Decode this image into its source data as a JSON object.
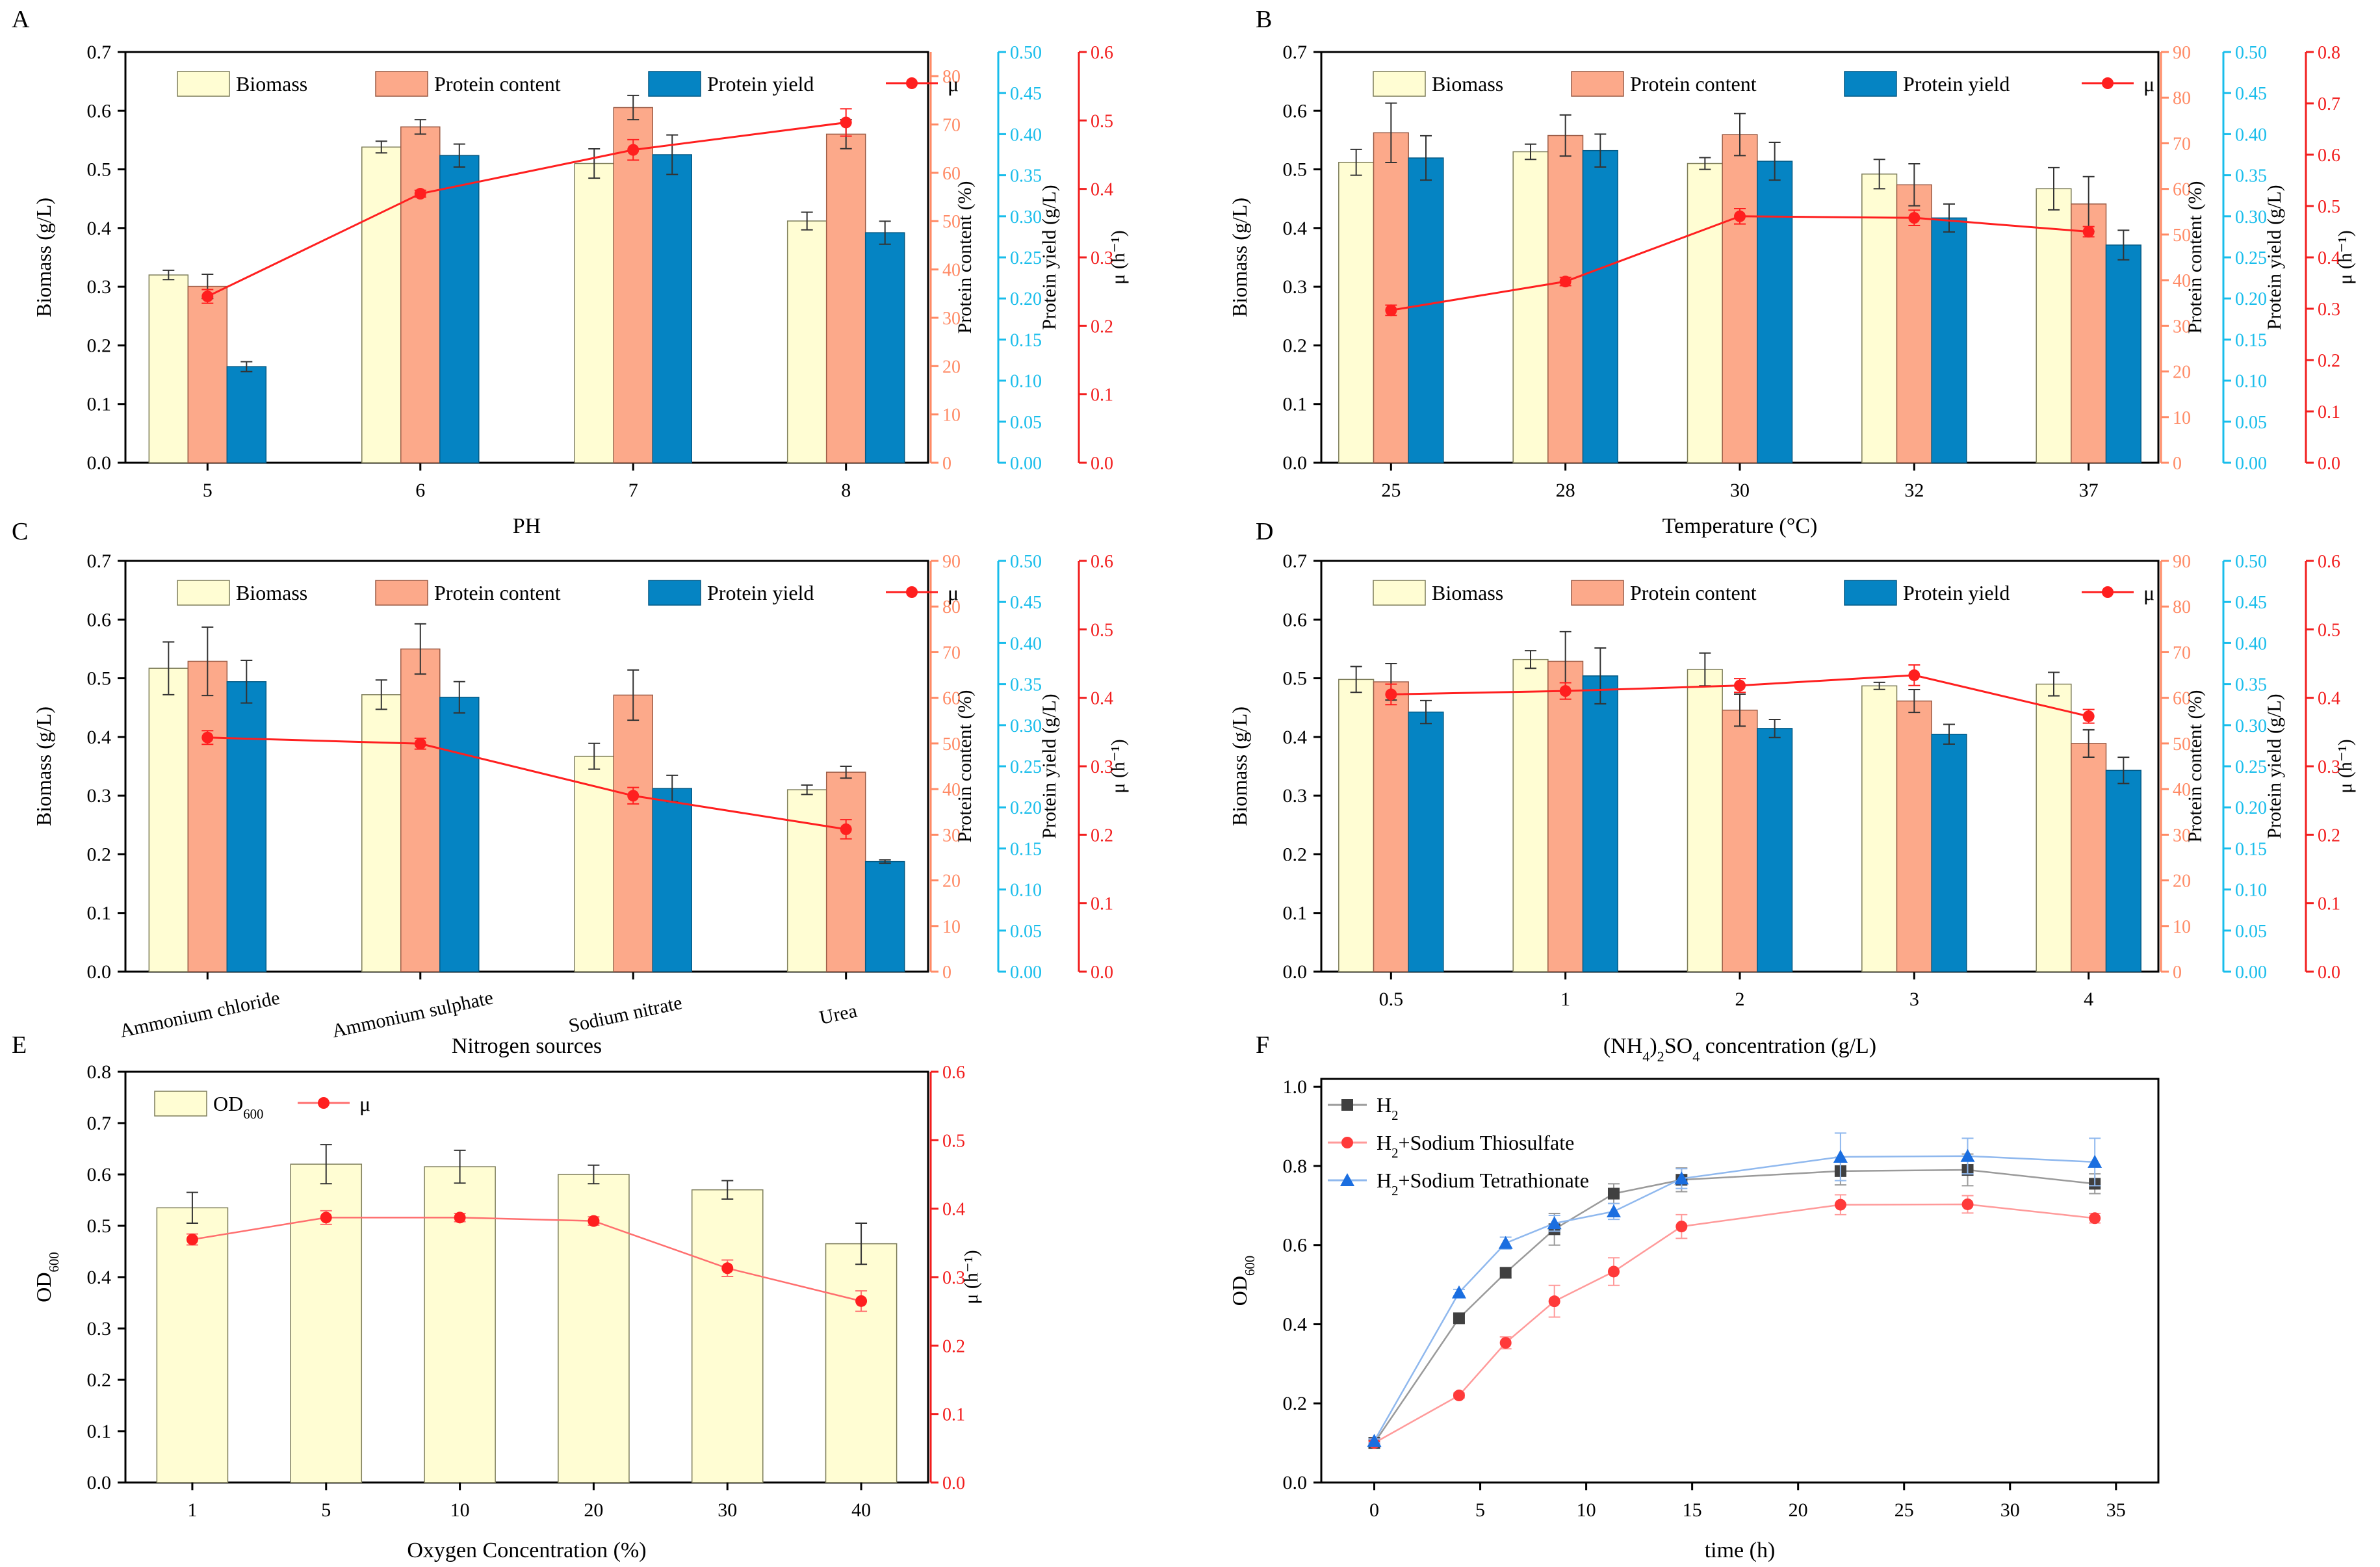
{
  "figure": {
    "colors": {
      "biomass": "#FFFDD3",
      "biomass_stroke": "#7d7d5a",
      "protein_content": "#FCA98A",
      "protein_content_stroke": "#9a5b45",
      "protein_yield": "#0584C3",
      "protein_yield_stroke": "#045a85",
      "mu": "#FF1F1F",
      "mu_light": "#FF6E6E",
      "content_axis": "#FF8A65",
      "yield_axis": "#18BDEB",
      "mu_axis": "#F21E1E",
      "od": "#FFFDD3",
      "h2": "#404040",
      "h2_line": "#9a9a9a",
      "thio": "#FF3A3A",
      "thio_line": "#FF9A9A",
      "tetra": "#1A6EE0",
      "tetra_line": "#8FB8EE"
    }
  },
  "chart_data": [
    {
      "id": "A",
      "panel_label": "A",
      "type": "bar",
      "title": "",
      "xlabel": "PH",
      "ylabel": "Biomass (g/L)",
      "y2label": "Protein content (%)",
      "y3label": "Protein yield (g/L)",
      "y4label": "μ (h⁻¹)",
      "categories": [
        "5",
        "6",
        "7",
        "8"
      ],
      "ylim": [
        0,
        0.7
      ],
      "y_ticks": [
        "0.0",
        "0.1",
        "0.2",
        "0.3",
        "0.4",
        "0.5",
        "0.6",
        "0.7"
      ],
      "y2lim": [
        0,
        85
      ],
      "y2_ticks": [
        "0",
        "10",
        "20",
        "30",
        "40",
        "50",
        "60",
        "70",
        "80"
      ],
      "y3lim": [
        0,
        0.5
      ],
      "y3_ticks": [
        "0.00",
        "0.05",
        "0.10",
        "0.15",
        "0.20",
        "0.25",
        "0.30",
        "0.35",
        "0.40",
        "0.45",
        "0.50"
      ],
      "y4lim": [
        0,
        0.6
      ],
      "y4_ticks": [
        "0.0",
        "0.1",
        "0.2",
        "0.3",
        "0.4",
        "0.5",
        "0.6"
      ],
      "legend": [
        "Biomass",
        "Protein content",
        "Protein yield",
        "μ"
      ],
      "legend_position": "top",
      "series": [
        {
          "name": "Biomass",
          "values": [
            0.32,
            0.538,
            0.51,
            0.412
          ],
          "errors": [
            0.008,
            0.01,
            0.025,
            0.015
          ]
        },
        {
          "name": "Protein content",
          "values": [
            36.5,
            69.5,
            73.5,
            68
          ],
          "errors": [
            2.5,
            1.5,
            2.5,
            3
          ]
        },
        {
          "name": "Protein yield",
          "values": [
            0.117,
            0.374,
            0.375,
            0.28
          ],
          "errors": [
            0.006,
            0.014,
            0.024,
            0.014
          ]
        },
        {
          "name": "μ",
          "values": [
            0.243,
            0.393,
            0.457,
            0.497
          ],
          "errors": [
            0.01,
            0.005,
            0.015,
            0.02
          ]
        }
      ]
    },
    {
      "id": "B",
      "panel_label": "B",
      "type": "bar",
      "title": "",
      "xlabel": "Temperature (°C)",
      "ylabel": "Biomass (g/L)",
      "y2label": "Protein content (%)",
      "y3label": "Protein yield (g/L)",
      "y4label": "μ (h⁻¹)",
      "categories": [
        "25",
        "28",
        "30",
        "32",
        "37"
      ],
      "ylim": [
        0,
        0.7
      ],
      "y_ticks": [
        "0.0",
        "0.1",
        "0.2",
        "0.3",
        "0.4",
        "0.5",
        "0.6",
        "0.7"
      ],
      "y2lim": [
        0,
        90
      ],
      "y2_ticks": [
        "0",
        "10",
        "20",
        "30",
        "40",
        "50",
        "60",
        "70",
        "80",
        "90"
      ],
      "y3lim": [
        0,
        0.5
      ],
      "y3_ticks": [
        "0.00",
        "0.05",
        "0.10",
        "0.15",
        "0.20",
        "0.25",
        "0.30",
        "0.35",
        "0.40",
        "0.45",
        "0.50"
      ],
      "y4lim": [
        0,
        0.8
      ],
      "y4_ticks": [
        "0.0",
        "0.1",
        "0.2",
        "0.3",
        "0.4",
        "0.5",
        "0.6",
        "0.7",
        "0.8"
      ],
      "legend": [
        "Biomass",
        "Protein content",
        "Protein yield",
        "μ"
      ],
      "legend_position": "top",
      "series": [
        {
          "name": "Biomass",
          "values": [
            0.512,
            0.53,
            0.51,
            0.492,
            0.467
          ],
          "errors": [
            0.022,
            0.013,
            0.01,
            0.025,
            0.036
          ]
        },
        {
          "name": "Protein content",
          "values": [
            72.3,
            71.7,
            71.9,
            60.9,
            56.7
          ],
          "errors": [
            6.5,
            4.5,
            4.6,
            4.6,
            6
          ]
        },
        {
          "name": "Protein yield",
          "values": [
            0.371,
            0.38,
            0.367,
            0.298,
            0.265
          ],
          "errors": [
            0.027,
            0.02,
            0.023,
            0.017,
            0.018
          ]
        },
        {
          "name": "μ",
          "values": [
            0.297,
            0.353,
            0.48,
            0.477,
            0.45
          ],
          "errors": [
            0.01,
            0.008,
            0.015,
            0.015,
            0.01
          ]
        }
      ]
    },
    {
      "id": "C",
      "panel_label": "C",
      "type": "bar",
      "title": "",
      "xlabel": "Nitrogen sources",
      "ylabel": "Biomass (g/L)",
      "y2label": "Protein content (%)",
      "y3label": "Protein yield (g/L)",
      "y4label": "μ (h⁻¹)",
      "categories": [
        "Ammonium chloride",
        "Ammonium sulphate",
        "Sodium nitrate",
        "Urea"
      ],
      "ylim": [
        0,
        0.7
      ],
      "y_ticks": [
        "0.0",
        "0.1",
        "0.2",
        "0.3",
        "0.4",
        "0.5",
        "0.6",
        "0.7"
      ],
      "y2lim": [
        0,
        90
      ],
      "y2_ticks": [
        "0",
        "10",
        "20",
        "30",
        "40",
        "50",
        "60",
        "70",
        "80",
        "90"
      ],
      "y3lim": [
        0,
        0.5
      ],
      "y3_ticks": [
        "0.00",
        "0.05",
        "0.10",
        "0.15",
        "0.20",
        "0.25",
        "0.30",
        "0.35",
        "0.40",
        "0.45",
        "0.50"
      ],
      "y4lim": [
        0,
        0.6
      ],
      "y4_ticks": [
        "0.0",
        "0.1",
        "0.2",
        "0.3",
        "0.4",
        "0.5",
        "0.6"
      ],
      "legend": [
        "Biomass",
        "Protein content",
        "Protein yield",
        "μ"
      ],
      "legend_position": "top",
      "series": [
        {
          "name": "Biomass",
          "values": [
            0.517,
            0.472,
            0.367,
            0.31
          ],
          "errors": [
            0.045,
            0.025,
            0.022,
            0.008
          ]
        },
        {
          "name": "Protein content",
          "values": [
            68,
            70.7,
            60.6,
            43.7
          ],
          "errors": [
            7.5,
            5.5,
            5.5,
            1.3
          ]
        },
        {
          "name": "Protein yield",
          "values": [
            0.353,
            0.334,
            0.223,
            0.134
          ],
          "errors": [
            0.026,
            0.019,
            0.016,
            0.002
          ]
        },
        {
          "name": "μ",
          "values": [
            0.342,
            0.333,
            0.257,
            0.208
          ],
          "errors": [
            0.01,
            0.008,
            0.012,
            0.014
          ]
        }
      ]
    },
    {
      "id": "D",
      "panel_label": "D",
      "type": "bar",
      "title": "",
      "xlabel": "(NH₄)₂SO₄ concentration (g/L)",
      "ylabel": "Biomass (g/L)",
      "y2label": "Protein content (%)",
      "y3label": "Protein yield (g/L)",
      "y4label": "μ (h⁻¹)",
      "categories": [
        "0.5",
        "1",
        "2",
        "3",
        "4"
      ],
      "ylim": [
        0,
        0.7
      ],
      "y_ticks": [
        "0.0",
        "0.1",
        "0.2",
        "0.3",
        "0.4",
        "0.5",
        "0.6",
        "0.7"
      ],
      "y2lim": [
        0,
        90
      ],
      "y2_ticks": [
        "0",
        "10",
        "20",
        "30",
        "40",
        "50",
        "60",
        "70",
        "80",
        "90"
      ],
      "y3lim": [
        0,
        0.5
      ],
      "y3_ticks": [
        "0.00",
        "0.05",
        "0.10",
        "0.15",
        "0.20",
        "0.25",
        "0.30",
        "0.35",
        "0.40",
        "0.45",
        "0.50"
      ],
      "y4lim": [
        0,
        0.6
      ],
      "y4_ticks": [
        "0.0",
        "0.1",
        "0.2",
        "0.3",
        "0.4",
        "0.5",
        "0.6"
      ],
      "legend": [
        "Biomass",
        "Protein content",
        "Protein yield",
        "μ"
      ],
      "legend_position": "top",
      "series": [
        {
          "name": "Biomass",
          "values": [
            0.498,
            0.532,
            0.515,
            0.487,
            0.49
          ],
          "errors": [
            0.022,
            0.015,
            0.028,
            0.006,
            0.02
          ]
        },
        {
          "name": "Protein content",
          "values": [
            63.5,
            68,
            57.3,
            59.3,
            50
          ],
          "errors": [
            4,
            6.5,
            3.5,
            2.5,
            3
          ]
        },
        {
          "name": "Protein yield",
          "values": [
            0.316,
            0.36,
            0.296,
            0.289,
            0.245
          ],
          "errors": [
            0.014,
            0.034,
            0.011,
            0.012,
            0.016
          ]
        },
        {
          "name": "μ",
          "values": [
            0.405,
            0.41,
            0.418,
            0.433,
            0.373
          ],
          "errors": [
            0.015,
            0.012,
            0.01,
            0.015,
            0.01
          ]
        }
      ]
    },
    {
      "id": "E",
      "panel_label": "E",
      "type": "bar",
      "title": "",
      "xlabel": "Oxygen Concentration (%)",
      "ylabel": "OD600",
      "ylabel_main": "OD",
      "ylabel_sub": "600",
      "y2label": "μ (h⁻¹)",
      "categories": [
        "1",
        "5",
        "10",
        "20",
        "30",
        "40"
      ],
      "ylim": [
        0,
        0.8
      ],
      "y_ticks": [
        "0.0",
        "0.1",
        "0.2",
        "0.3",
        "0.4",
        "0.5",
        "0.6",
        "0.7",
        "0.8"
      ],
      "y2lim": [
        0,
        0.6
      ],
      "y2_ticks": [
        "0.0",
        "0.1",
        "0.2",
        "0.3",
        "0.4",
        "0.5",
        "0.6"
      ],
      "legend": [
        "OD600",
        "μ"
      ],
      "legend_main": "OD",
      "legend_sub": "600",
      "legend_mu": "μ",
      "legend_position": "top-left",
      "series": [
        {
          "name": "OD600",
          "values": [
            0.535,
            0.62,
            0.615,
            0.6,
            0.57,
            0.465
          ],
          "errors": [
            0.03,
            0.038,
            0.032,
            0.018,
            0.018,
            0.04
          ]
        },
        {
          "name": "μ",
          "values": [
            0.355,
            0.387,
            0.387,
            0.382,
            0.313,
            0.265
          ],
          "errors": [
            0.008,
            0.01,
            0.006,
            0.006,
            0.012,
            0.015
          ]
        }
      ]
    },
    {
      "id": "F",
      "panel_label": "F",
      "type": "line",
      "title": "",
      "xlabel": "time (h)",
      "ylabel": "OD600",
      "ylabel_main": "OD",
      "ylabel_sub": "600",
      "xlim": [
        -2.5,
        37
      ],
      "x_ticks": [
        "0",
        "5",
        "10",
        "15",
        "20",
        "25",
        "30",
        "35"
      ],
      "ylim": [
        0,
        1.02
      ],
      "y_ticks": [
        "0.0",
        "0.2",
        "0.4",
        "0.6",
        "0.8",
        "1.0"
      ],
      "legend_position": "top-left",
      "series": [
        {
          "name": "H2",
          "label_main": "H",
          "label_sub": "2",
          "label_rest": "",
          "x": [
            0,
            4,
            6.2,
            8.5,
            11.3,
            14.5,
            22,
            28,
            34
          ],
          "values": [
            0.1,
            0.415,
            0.53,
            0.64,
            0.73,
            0.765,
            0.787,
            0.79,
            0.755
          ],
          "errors": [
            0.005,
            0.01,
            0.012,
            0.04,
            0.025,
            0.03,
            0.035,
            0.04,
            0.025
          ]
        },
        {
          "name": "H2+Sodium Thiosulfate",
          "label_main": "H",
          "label_sub": "2",
          "label_rest": "+Sodium Thiosulfate",
          "x": [
            0,
            4,
            6.2,
            8.5,
            11.3,
            14.5,
            22,
            28,
            34
          ],
          "values": [
            0.1,
            0.22,
            0.353,
            0.458,
            0.533,
            0.647,
            0.702,
            0.703,
            0.668
          ],
          "errors": [
            0.004,
            0.006,
            0.015,
            0.04,
            0.035,
            0.03,
            0.025,
            0.022,
            0.012
          ]
        },
        {
          "name": "H2+Sodium Tetrathionate",
          "label_main": "H",
          "label_sub": "2",
          "label_rest": "+Sodium Tetrathionate",
          "x": [
            0,
            4,
            6.2,
            8.5,
            11.3,
            14.5,
            22,
            28,
            34
          ],
          "values": [
            0.105,
            0.48,
            0.605,
            0.655,
            0.685,
            0.768,
            0.823,
            0.825,
            0.81
          ],
          "errors": [
            0.005,
            0.008,
            0.015,
            0.02,
            0.02,
            0.025,
            0.06,
            0.045,
            0.06
          ]
        }
      ]
    }
  ]
}
